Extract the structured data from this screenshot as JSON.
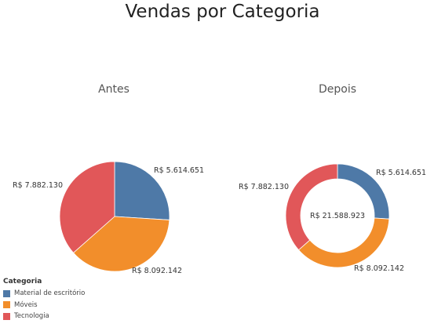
{
  "title": "Vendas por Categoria",
  "colors": {
    "Material de escritório": "#4e79a7",
    "Móveis": "#f28e2b",
    "Tecnologia": "#e15759"
  },
  "legend": {
    "title": "Categoria",
    "items": [
      "Material de escritório",
      "Móveis",
      "Tecnologia"
    ]
  },
  "chart_data": [
    {
      "type": "pie",
      "title": "Antes",
      "categories": [
        "Material de escritório",
        "Móveis",
        "Tecnologia"
      ],
      "values": [
        5614651,
        8092142,
        7882130
      ],
      "labels": [
        "R$ 5.614.651",
        "R$ 8.092.142",
        "R$ 7.882.130"
      ],
      "legend": "bottom-left"
    },
    {
      "type": "pie",
      "title": "Depois",
      "categories": [
        "Material de escritório",
        "Móveis",
        "Tecnologia"
      ],
      "values": [
        5614651,
        8092142,
        7882130
      ],
      "labels": [
        "R$ 5.614.651",
        "R$ 8.092.142",
        "R$ 7.882.130"
      ],
      "center_label": "R$ 21.588.923",
      "legend": "bottom-left"
    }
  ]
}
